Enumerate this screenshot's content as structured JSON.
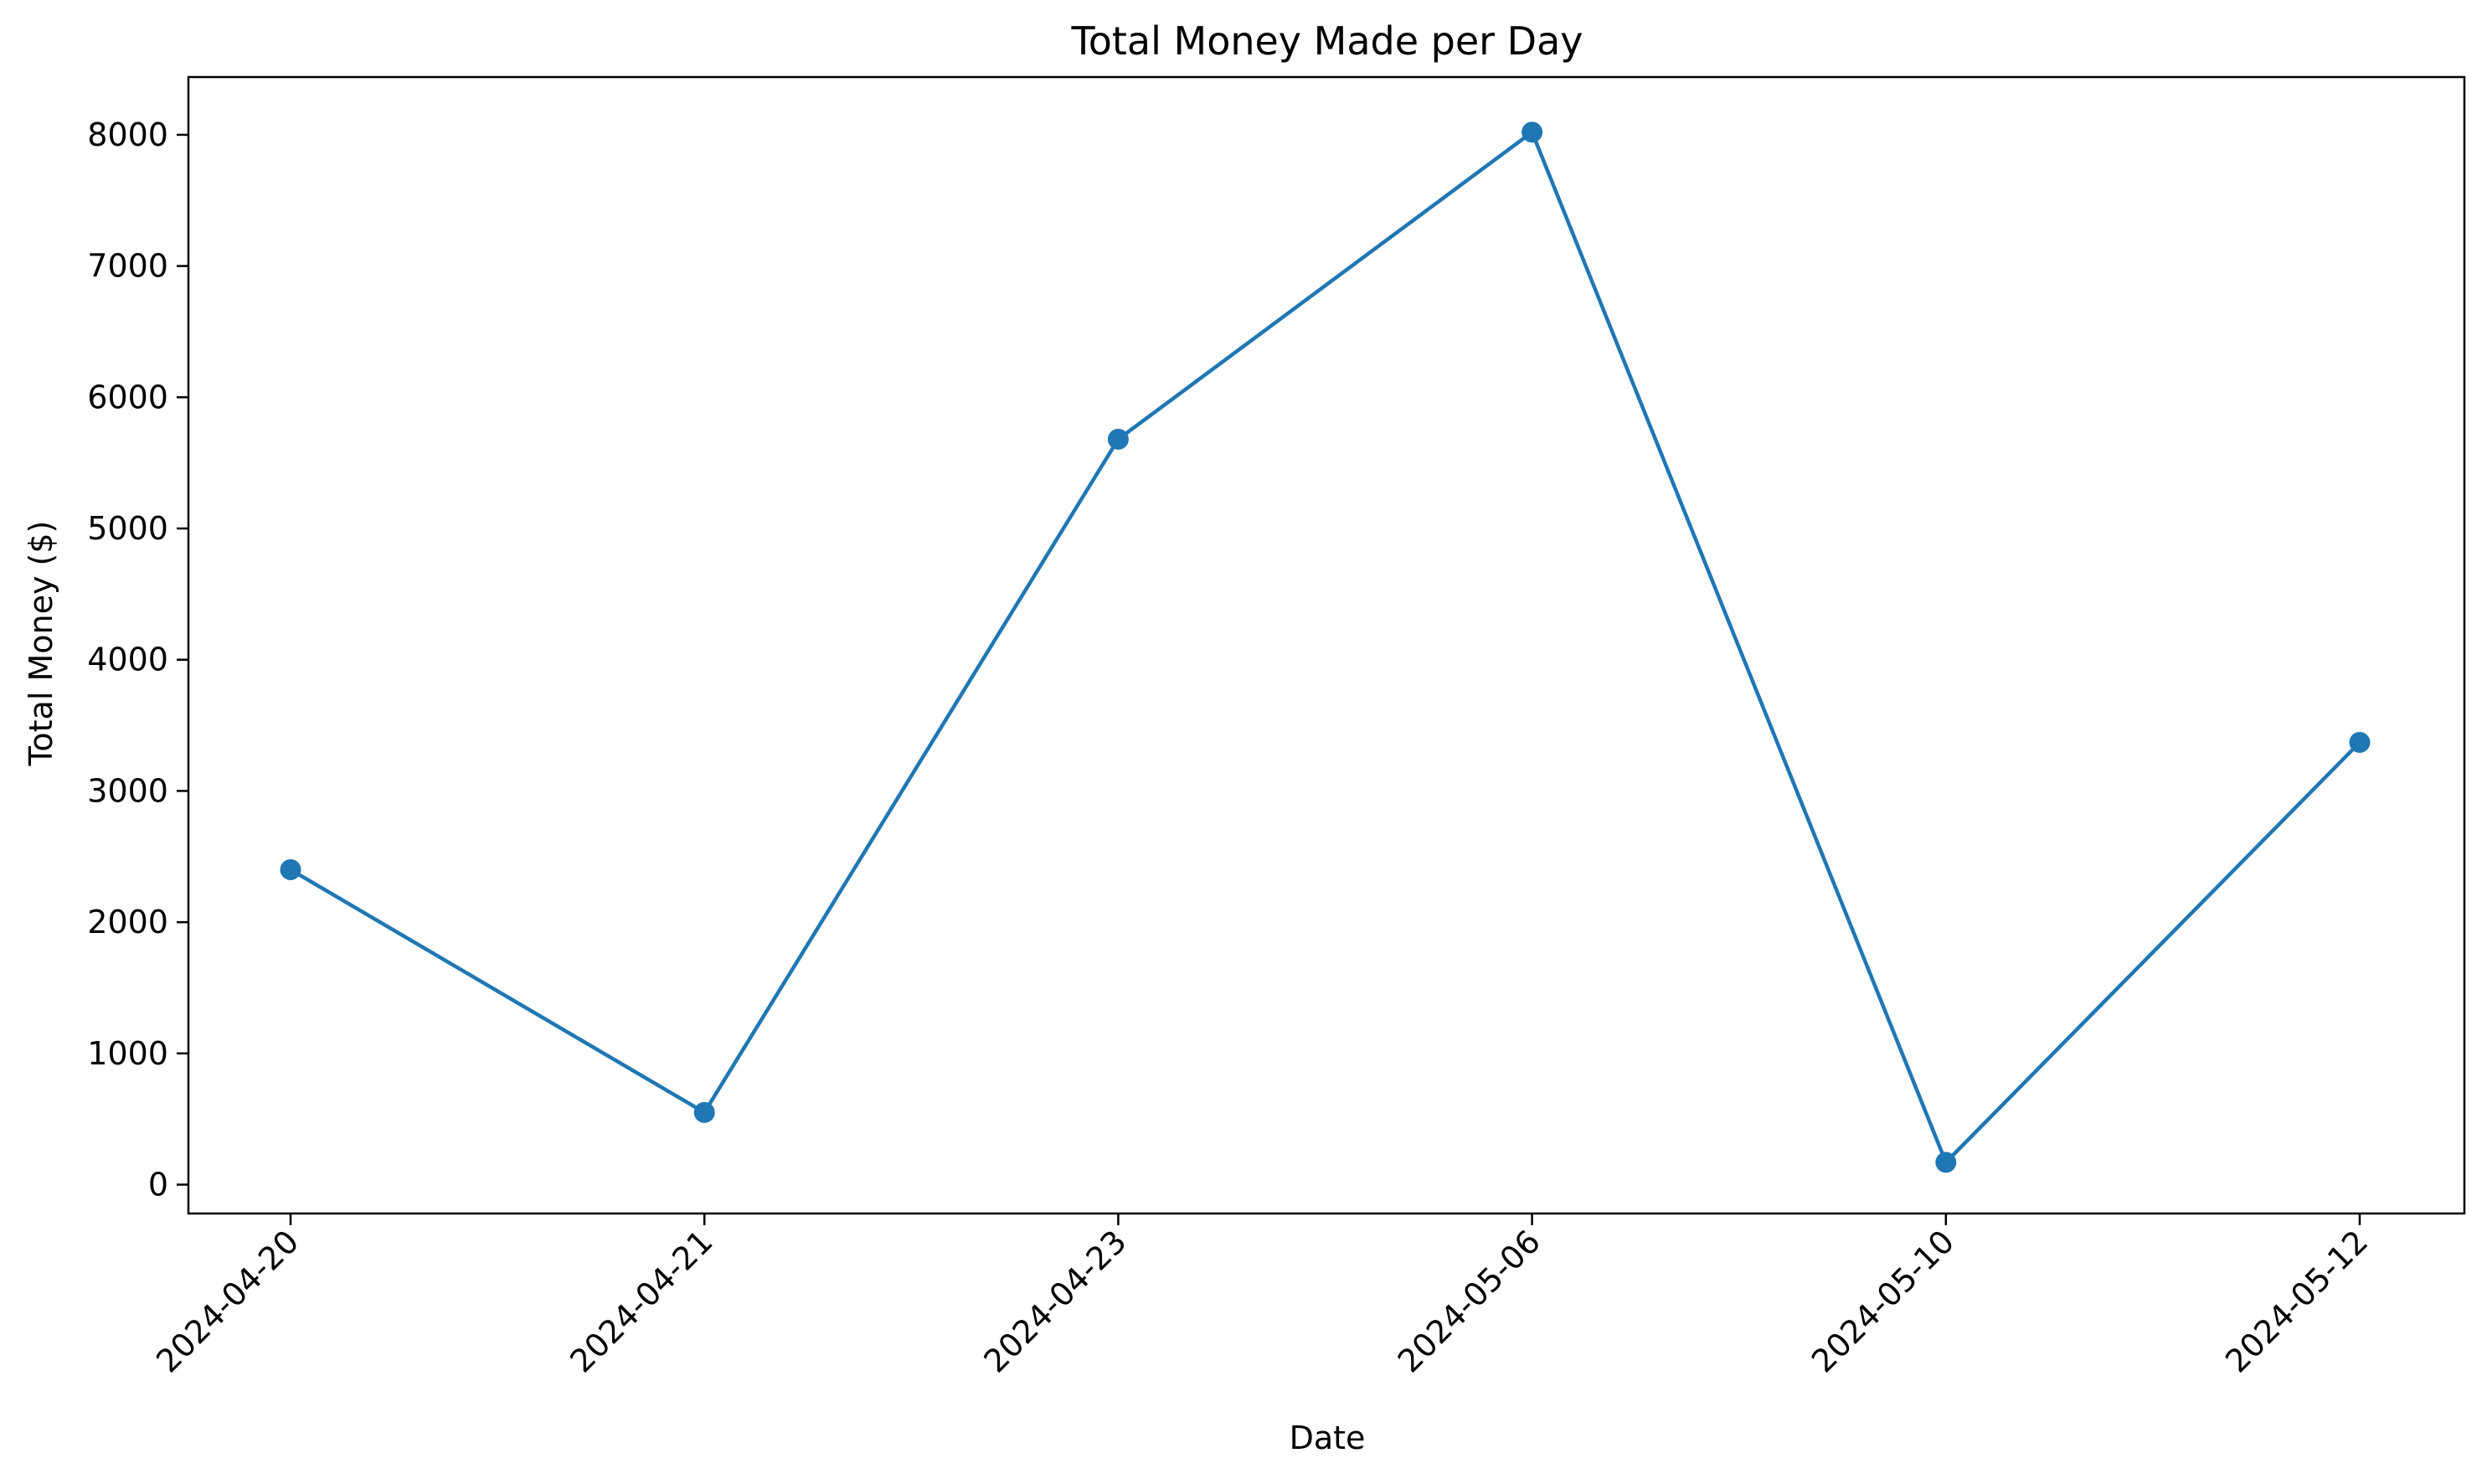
{
  "chart_data": {
    "type": "line",
    "title": "Total Money Made per Day",
    "xlabel": "Date",
    "ylabel": "Total Money ($)",
    "categories": [
      "2024-04-20",
      "2024-04-21",
      "2024-04-23",
      "2024-05-06",
      "2024-05-10",
      "2024-05-12"
    ],
    "series": [
      {
        "values": [
          2400,
          550,
          5680,
          8020,
          170,
          3370
        ],
        "color": "#1f77b4",
        "marker": "circle"
      }
    ],
    "ylim": [
      -220,
      8440
    ],
    "yticks": [
      0,
      1000,
      2000,
      3000,
      4000,
      5000,
      6000,
      7000,
      8000
    ],
    "x_tick_rotation": 45,
    "grid": false,
    "legend": "none"
  }
}
